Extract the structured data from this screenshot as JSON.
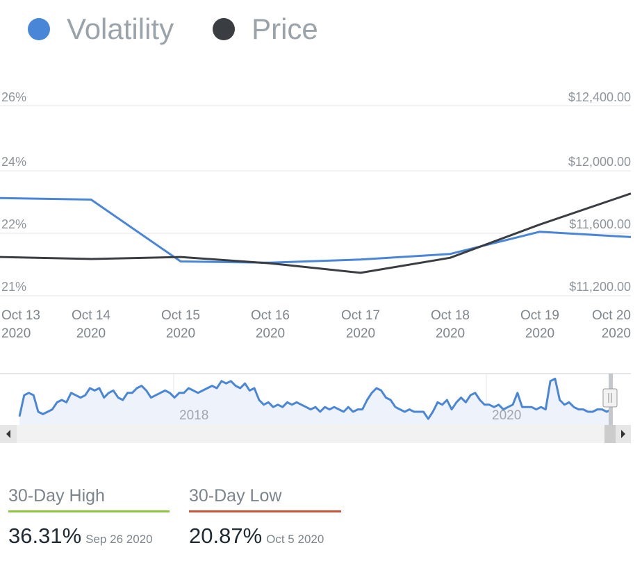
{
  "legend": {
    "volatility": {
      "label": "Volatility",
      "color": "#4a86d8"
    },
    "price": {
      "label": "Price",
      "color": "#3a3d42"
    }
  },
  "chart_data": {
    "type": "line",
    "x_dates": [
      [
        "Oct 13",
        "2020"
      ],
      [
        "Oct 14",
        "2020"
      ],
      [
        "Oct 15",
        "2020"
      ],
      [
        "Oct 16",
        "2020"
      ],
      [
        "Oct 17",
        "2020"
      ],
      [
        "Oct 18",
        "2020"
      ],
      [
        "Oct 19",
        "2020"
      ],
      [
        "Oct 20",
        "2020"
      ]
    ],
    "y_left": {
      "ticks": [
        "26%",
        "24%",
        "22%",
        "21%"
      ]
    },
    "y_right": {
      "ticks": [
        "$12,400.00",
        "$12,000.00",
        "$11,600.00",
        "$11,200.00"
      ],
      "range": [
        11200,
        12400
      ]
    },
    "series": [
      {
        "name": "Volatility",
        "color": "#4a86d8",
        "values": [
          23.13,
          23.08,
          21.55,
          21.53,
          21.58,
          21.67,
          22.05,
          21.94
        ]
      },
      {
        "name": "Price",
        "color": "#3a3d42",
        "values": [
          11445,
          11432,
          11445,
          11405,
          11345,
          11440,
          11650,
          11845
        ]
      }
    ]
  },
  "navigator": {
    "labels": [
      "2018",
      "2020"
    ],
    "series_values": [
      21,
      30,
      31,
      30,
      23,
      22,
      23,
      24,
      27,
      28,
      27,
      31,
      30,
      29,
      30,
      33,
      32,
      33,
      29,
      31,
      32,
      29,
      28,
      31,
      31,
      33,
      34,
      32,
      29,
      30,
      31,
      32,
      31,
      29,
      31,
      31,
      33,
      32,
      31,
      32,
      33,
      34,
      33,
      36,
      35,
      36,
      34,
      33,
      35,
      32,
      33,
      28,
      26,
      27,
      25,
      26,
      25,
      27,
      26,
      27,
      26,
      25,
      24,
      25,
      23,
      25,
      24,
      25,
      24,
      23,
      25,
      23,
      24,
      24,
      28,
      31,
      33,
      32,
      29,
      28,
      25,
      24,
      23,
      24,
      23,
      23,
      23,
      20,
      23,
      27,
      26,
      28,
      24,
      27,
      29,
      27,
      30,
      31,
      28,
      26,
      26,
      25,
      26,
      24,
      25,
      26,
      31,
      25,
      25,
      25,
      24,
      25,
      24,
      36,
      37,
      28,
      26,
      27,
      25,
      24,
      24,
      23,
      23,
      24,
      24,
      23,
      24
    ]
  },
  "stats": {
    "high": {
      "title": "30-Day High",
      "value": "36.31%",
      "date": "Sep 26 2020",
      "color": "#8dc541"
    },
    "low": {
      "title": "30-Day Low",
      "value": "20.87%",
      "date": "Oct 5 2020",
      "color": "#c8563a"
    }
  }
}
